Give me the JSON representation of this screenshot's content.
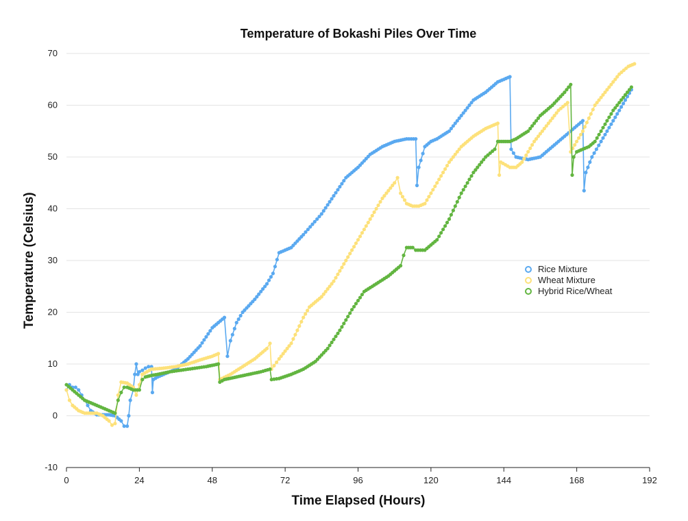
{
  "chart_data": {
    "type": "line",
    "title": "Temperature of Bokashi Piles Over Time",
    "xlabel": "Time Elapsed (Hours)",
    "ylabel": "Temperature (Celsius)",
    "xlim": [
      0,
      192
    ],
    "ylim": [
      -10,
      70
    ],
    "x_ticks": [
      0,
      24,
      48,
      72,
      96,
      120,
      144,
      168,
      192
    ],
    "y_ticks": [
      -10,
      0,
      10,
      20,
      30,
      40,
      50,
      60,
      70
    ],
    "grid": true,
    "legend_position": "right-middle",
    "series": [
      {
        "name": "Rice Mixture",
        "color": "#5aa9f0",
        "points": [
          [
            0,
            5
          ],
          [
            1,
            6
          ],
          [
            2,
            5.5
          ],
          [
            3,
            5.5
          ],
          [
            4,
            5
          ],
          [
            5,
            4
          ],
          [
            6,
            3
          ],
          [
            7,
            2
          ],
          [
            8,
            1
          ],
          [
            10,
            0.2
          ],
          [
            14,
            0.2
          ],
          [
            16,
            0
          ],
          [
            18,
            -1
          ],
          [
            19,
            -2
          ],
          [
            20,
            -2
          ],
          [
            20.5,
            0
          ],
          [
            21,
            3
          ],
          [
            22,
            5
          ],
          [
            22.5,
            8
          ],
          [
            23,
            10
          ],
          [
            23.5,
            8
          ],
          [
            24,
            8.5
          ],
          [
            25,
            8.8
          ],
          [
            26,
            9.2
          ],
          [
            27,
            9.5
          ],
          [
            28,
            9.5
          ],
          [
            28.3,
            4.5
          ],
          [
            28.6,
            7
          ],
          [
            30,
            7.5
          ],
          [
            32,
            8
          ],
          [
            36,
            9
          ],
          [
            40,
            11
          ],
          [
            44,
            13.5
          ],
          [
            48,
            17
          ],
          [
            52,
            19
          ],
          [
            53,
            11.5
          ],
          [
            54,
            14.5
          ],
          [
            56,
            18
          ],
          [
            58,
            20
          ],
          [
            62,
            22.5
          ],
          [
            66,
            25.5
          ],
          [
            68,
            27.5
          ],
          [
            70,
            31.5
          ],
          [
            72,
            32
          ],
          [
            74,
            32.5
          ],
          [
            78,
            35
          ],
          [
            84,
            39
          ],
          [
            88,
            42.5
          ],
          [
            92,
            46
          ],
          [
            96,
            48
          ],
          [
            100,
            50.5
          ],
          [
            104,
            52
          ],
          [
            108,
            53
          ],
          [
            112,
            53.5
          ],
          [
            115,
            53.5
          ],
          [
            115.4,
            44.5
          ],
          [
            116,
            48
          ],
          [
            118,
            52
          ],
          [
            120,
            53
          ],
          [
            122,
            53.5
          ],
          [
            126,
            55
          ],
          [
            130,
            58
          ],
          [
            134,
            61
          ],
          [
            138,
            62.5
          ],
          [
            142,
            64.5
          ],
          [
            146,
            65.5
          ],
          [
            146.4,
            51.5
          ],
          [
            148,
            50
          ],
          [
            152,
            49.5
          ],
          [
            156,
            50
          ],
          [
            160,
            52
          ],
          [
            164,
            54
          ],
          [
            168,
            56
          ],
          [
            170,
            57
          ],
          [
            170.4,
            43.5
          ],
          [
            171,
            47
          ],
          [
            173,
            50
          ],
          [
            176,
            53
          ],
          [
            180,
            57
          ],
          [
            184,
            61
          ],
          [
            186,
            63
          ]
        ]
      },
      {
        "name": "Wheat Mixture",
        "color": "#fde17a",
        "points": [
          [
            0,
            5
          ],
          [
            1,
            3
          ],
          [
            2,
            2
          ],
          [
            4,
            1
          ],
          [
            6,
            0.5
          ],
          [
            10,
            0.5
          ],
          [
            12,
            0
          ],
          [
            14,
            -1
          ],
          [
            15,
            -1.8
          ],
          [
            16,
            -1.5
          ],
          [
            17,
            4
          ],
          [
            18,
            6.5
          ],
          [
            20,
            6.3
          ],
          [
            22,
            5.5
          ],
          [
            23,
            4
          ],
          [
            24,
            6
          ],
          [
            25,
            8
          ],
          [
            28,
            9
          ],
          [
            32,
            9.2
          ],
          [
            36,
            9.5
          ],
          [
            40,
            10
          ],
          [
            44,
            10.8
          ],
          [
            48,
            11.5
          ],
          [
            50,
            12
          ],
          [
            50.5,
            7
          ],
          [
            54,
            8
          ],
          [
            58,
            9.5
          ],
          [
            62,
            11
          ],
          [
            66,
            13
          ],
          [
            67,
            14
          ],
          [
            67.5,
            9
          ],
          [
            70,
            11
          ],
          [
            74,
            14
          ],
          [
            78,
            19
          ],
          [
            80,
            21
          ],
          [
            84,
            23
          ],
          [
            88,
            26
          ],
          [
            92,
            30
          ],
          [
            96,
            34
          ],
          [
            100,
            38
          ],
          [
            104,
            42
          ],
          [
            108,
            45
          ],
          [
            109,
            46
          ],
          [
            110,
            43
          ],
          [
            112,
            41
          ],
          [
            114,
            40.5
          ],
          [
            116,
            40.5
          ],
          [
            118,
            41
          ],
          [
            120,
            43
          ],
          [
            122,
            45
          ],
          [
            126,
            49
          ],
          [
            130,
            52
          ],
          [
            134,
            54
          ],
          [
            138,
            55.5
          ],
          [
            142,
            56.5
          ],
          [
            142.5,
            46.5
          ],
          [
            143,
            49
          ],
          [
            146,
            48
          ],
          [
            148,
            48
          ],
          [
            150,
            49
          ],
          [
            154,
            53
          ],
          [
            158,
            56
          ],
          [
            162,
            59
          ],
          [
            165,
            60.5
          ],
          [
            166,
            51
          ],
          [
            168,
            53
          ],
          [
            170,
            55
          ],
          [
            174,
            60
          ],
          [
            178,
            63
          ],
          [
            182,
            66
          ],
          [
            185,
            67.5
          ],
          [
            187,
            68
          ]
        ]
      },
      {
        "name": "Hybrid Rice/Wheat",
        "color": "#62b540",
        "points": [
          [
            0,
            6
          ],
          [
            2,
            5
          ],
          [
            4,
            4
          ],
          [
            6,
            3
          ],
          [
            8,
            2.5
          ],
          [
            10,
            2
          ],
          [
            12,
            1.5
          ],
          [
            14,
            1
          ],
          [
            16,
            0.5
          ],
          [
            17,
            3
          ],
          [
            18,
            4.5
          ],
          [
            19,
            5.5
          ],
          [
            20,
            5.5
          ],
          [
            22,
            5
          ],
          [
            24,
            5
          ],
          [
            25,
            7
          ],
          [
            26,
            7.5
          ],
          [
            28,
            7.8
          ],
          [
            30,
            8
          ],
          [
            34,
            8.5
          ],
          [
            40,
            9
          ],
          [
            46,
            9.5
          ],
          [
            50,
            10
          ],
          [
            50.5,
            6.5
          ],
          [
            52,
            7
          ],
          [
            56,
            7.5
          ],
          [
            60,
            8
          ],
          [
            64,
            8.5
          ],
          [
            67,
            9
          ],
          [
            67.5,
            7
          ],
          [
            70,
            7.2
          ],
          [
            74,
            8
          ],
          [
            78,
            9
          ],
          [
            82,
            10.5
          ],
          [
            86,
            13
          ],
          [
            90,
            16.5
          ],
          [
            94,
            20.5
          ],
          [
            98,
            24
          ],
          [
            102,
            25.5
          ],
          [
            106,
            27
          ],
          [
            110,
            29
          ],
          [
            111,
            31
          ],
          [
            112,
            32.5
          ],
          [
            114,
            32.5
          ],
          [
            115,
            32
          ],
          [
            118,
            32
          ],
          [
            122,
            34
          ],
          [
            126,
            38
          ],
          [
            130,
            43
          ],
          [
            134,
            47
          ],
          [
            138,
            50
          ],
          [
            141,
            51.5
          ],
          [
            142,
            53
          ],
          [
            146,
            53
          ],
          [
            148,
            53.5
          ],
          [
            152,
            55
          ],
          [
            156,
            58
          ],
          [
            160,
            60
          ],
          [
            164,
            62.5
          ],
          [
            166,
            64
          ],
          [
            166.5,
            46.5
          ],
          [
            167,
            50
          ],
          [
            168,
            51
          ],
          [
            170,
            51.5
          ],
          [
            172,
            52
          ],
          [
            174,
            53
          ],
          [
            176,
            55
          ],
          [
            180,
            59
          ],
          [
            184,
            62
          ],
          [
            186,
            63.5
          ]
        ]
      }
    ]
  }
}
